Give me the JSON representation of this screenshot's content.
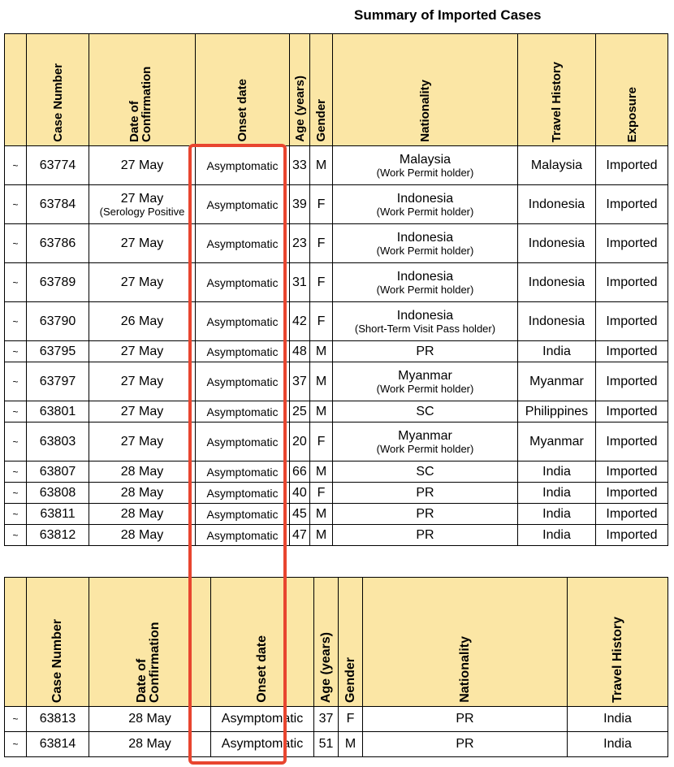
{
  "title": "Summary of Imported Cases",
  "table1": {
    "headers": {
      "case_number": "Case Number",
      "date_of_confirmation": "Date of Confirmation",
      "onset_date": "Onset date",
      "age": "Age (years)",
      "gender": "Gender",
      "nationality": "Nationality",
      "travel_history": "Travel History",
      "exposure": "Exposure"
    },
    "rows": [
      {
        "mark": "~",
        "case": "63774",
        "date": "27 May",
        "date_note": "",
        "onset": "Asymptomatic",
        "age": "33",
        "gender": "M",
        "nationality": "Malaysia",
        "nat_note": "(Work Permit holder)",
        "travel": "Malaysia",
        "exposure": "Imported"
      },
      {
        "mark": "~",
        "case": "63784",
        "date": "27 May",
        "date_note": "(Serology Positive",
        "onset": "Asymptomatic",
        "age": "39",
        "gender": "F",
        "nationality": "Indonesia",
        "nat_note": "(Work Permit holder)",
        "travel": "Indonesia",
        "exposure": "Imported"
      },
      {
        "mark": "~",
        "case": "63786",
        "date": "27 May",
        "date_note": "",
        "onset": "Asymptomatic",
        "age": "23",
        "gender": "F",
        "nationality": "Indonesia",
        "nat_note": "(Work Permit holder)",
        "travel": "Indonesia",
        "exposure": "Imported"
      },
      {
        "mark": "~",
        "case": "63789",
        "date": "27 May",
        "date_note": "",
        "onset": "Asymptomatic",
        "age": "31",
        "gender": "F",
        "nationality": "Indonesia",
        "nat_note": "(Work Permit holder)",
        "travel": "Indonesia",
        "exposure": "Imported"
      },
      {
        "mark": "~",
        "case": "63790",
        "date": "26 May",
        "date_note": "",
        "onset": "Asymptomatic",
        "age": "42",
        "gender": "F",
        "nationality": "Indonesia",
        "nat_note": "(Short-Term Visit Pass holder)",
        "travel": "Indonesia",
        "exposure": "Imported"
      },
      {
        "mark": "~",
        "case": "63795",
        "date": "27 May",
        "date_note": "",
        "onset": "Asymptomatic",
        "age": "48",
        "gender": "M",
        "nationality": "PR",
        "nat_note": "",
        "travel": "India",
        "exposure": "Imported"
      },
      {
        "mark": "~",
        "case": "63797",
        "date": "27 May",
        "date_note": "",
        "onset": "Asymptomatic",
        "age": "37",
        "gender": "M",
        "nationality": "Myanmar",
        "nat_note": "(Work Permit holder)",
        "travel": "Myanmar",
        "exposure": "Imported"
      },
      {
        "mark": "~",
        "case": "63801",
        "date": "27 May",
        "date_note": "",
        "onset": "Asymptomatic",
        "age": "25",
        "gender": "M",
        "nationality": "SC",
        "nat_note": "",
        "travel": "Philippines",
        "exposure": "Imported"
      },
      {
        "mark": "~",
        "case": "63803",
        "date": "27 May",
        "date_note": "",
        "onset": "Asymptomatic",
        "age": "20",
        "gender": "F",
        "nationality": "Myanmar",
        "nat_note": "(Work Permit holder)",
        "travel": "Myanmar",
        "exposure": "Imported"
      },
      {
        "mark": "~",
        "case": "63807",
        "date": "28 May",
        "date_note": "",
        "onset": "Asymptomatic",
        "age": "66",
        "gender": "M",
        "nationality": "SC",
        "nat_note": "",
        "travel": "India",
        "exposure": "Imported"
      },
      {
        "mark": "~",
        "case": "63808",
        "date": "28 May",
        "date_note": "",
        "onset": "Asymptomatic",
        "age": "40",
        "gender": "F",
        "nationality": "PR",
        "nat_note": "",
        "travel": "India",
        "exposure": "Imported"
      },
      {
        "mark": "~",
        "case": "63811",
        "date": "28 May",
        "date_note": "",
        "onset": "Asymptomatic",
        "age": "45",
        "gender": "M",
        "nationality": "PR",
        "nat_note": "",
        "travel": "India",
        "exposure": "Imported"
      },
      {
        "mark": "~",
        "case": "63812",
        "date": "28 May",
        "date_note": "",
        "onset": "Asymptomatic",
        "age": "47",
        "gender": "M",
        "nationality": "PR",
        "nat_note": "",
        "travel": "India",
        "exposure": "Imported"
      }
    ]
  },
  "table2": {
    "headers": {
      "case_number": "Case Number",
      "date_of_confirmation": "Date of Confirmation",
      "onset_date": "Onset date",
      "age": "Age (years)",
      "gender": "Gender",
      "nationality": "Nationality",
      "travel_history": "Travel History"
    },
    "rows": [
      {
        "mark": "~",
        "case": "63813",
        "date": "28 May",
        "onset": "Asymptomatic",
        "age": "37",
        "gender": "F",
        "nationality": "PR",
        "travel": "India"
      },
      {
        "mark": "~",
        "case": "63814",
        "date": "28 May",
        "onset": "Asymptomatic",
        "age": "51",
        "gender": "M",
        "nationality": "PR",
        "travel": "India"
      }
    ]
  },
  "colors": {
    "header_bg": "#fbe6a5",
    "highlight": "#e8452f"
  }
}
